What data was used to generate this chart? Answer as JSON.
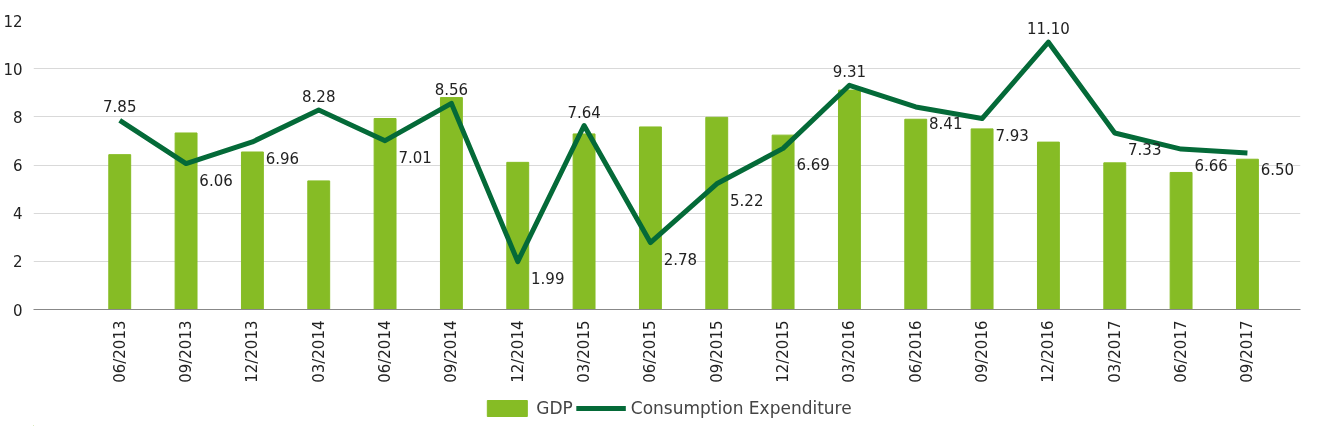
{
  "chart_data": {
    "type": "bar",
    "categories": [
      "06/2013",
      "09/2013",
      "12/2013",
      "03/2014",
      "06/2014",
      "09/2014",
      "12/2014",
      "03/2015",
      "06/2015",
      "09/2015",
      "12/2015",
      "03/2016",
      "06/2016",
      "09/2016",
      "12/2016",
      "03/2017",
      "06/2017",
      "09/2017"
    ],
    "series": [
      {
        "name": "GDP",
        "color": "#86bc25",
        "values": [
          6.43,
          7.33,
          6.54,
          5.34,
          7.93,
          8.8,
          6.11,
          7.29,
          7.58,
          7.98,
          7.24,
          9.11,
          7.9,
          7.5,
          6.95,
          6.09,
          5.69,
          6.24
        ]
      },
      {
        "name": "Consumption Expenditure",
        "type": "line",
        "color": "#046a38",
        "values": [
          7.85,
          6.06,
          6.96,
          8.28,
          7.01,
          8.56,
          1.99,
          7.64,
          2.78,
          5.22,
          6.69,
          9.31,
          8.41,
          7.93,
          11.1,
          7.33,
          6.66,
          6.5
        ],
        "value_labels": [
          "7.85",
          "6.06",
          "6.96",
          "8.28",
          "7.01",
          "8.56",
          "1.99",
          "7.64",
          "2.78",
          "5.22",
          "6.69",
          "9.31",
          "8.41",
          "7.93",
          "11.10",
          "7.33",
          "6.66",
          "6.50"
        ]
      }
    ],
    "ylim": [
      0,
      12
    ],
    "yticks": [
      0,
      2,
      4,
      6,
      8,
      10,
      12
    ],
    "grid": "y",
    "legend": "bottom"
  }
}
